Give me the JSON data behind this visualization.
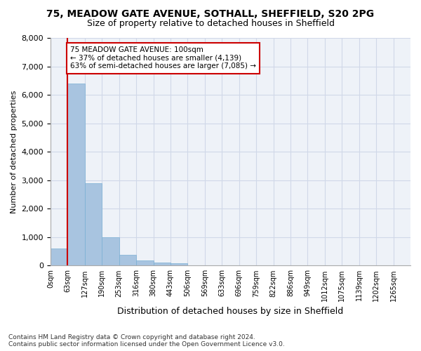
{
  "title_line1": "75, MEADOW GATE AVENUE, SOTHALL, SHEFFIELD, S20 2PG",
  "title_line2": "Size of property relative to detached houses in Sheffield",
  "xlabel": "Distribution of detached houses by size in Sheffield",
  "ylabel": "Number of detached properties",
  "bar_color": "#a8c4e0",
  "bar_edge_color": "#7aafd4",
  "bin_labels": [
    "0sqm",
    "63sqm",
    "127sqm",
    "190sqm",
    "253sqm",
    "316sqm",
    "380sqm",
    "443sqm",
    "506sqm",
    "569sqm",
    "633sqm",
    "696sqm",
    "759sqm",
    "822sqm",
    "886sqm",
    "949sqm",
    "1012sqm",
    "1075sqm",
    "1139sqm",
    "1202sqm",
    "1265sqm"
  ],
  "bar_heights": [
    600,
    6400,
    2900,
    1000,
    380,
    170,
    110,
    90,
    0,
    0,
    0,
    0,
    0,
    0,
    0,
    0,
    0,
    0,
    0,
    0,
    0
  ],
  "property_bin_index": 1,
  "vline_color": "#cc0000",
  "annotation_text": "75 MEADOW GATE AVENUE: 100sqm\n← 37% of detached houses are smaller (4,139)\n63% of semi-detached houses are larger (7,085) →",
  "annotation_box_color": "white",
  "annotation_box_edge_color": "#cc0000",
  "ylim": [
    0,
    8000
  ],
  "yticks": [
    0,
    1000,
    2000,
    3000,
    4000,
    5000,
    6000,
    7000,
    8000
  ],
  "grid_color": "#d0d8e8",
  "bg_color": "#eef2f8",
  "footnote": "Contains HM Land Registry data © Crown copyright and database right 2024.\nContains public sector information licensed under the Open Government Licence v3.0.",
  "title_fontsize": 10,
  "subtitle_fontsize": 9
}
